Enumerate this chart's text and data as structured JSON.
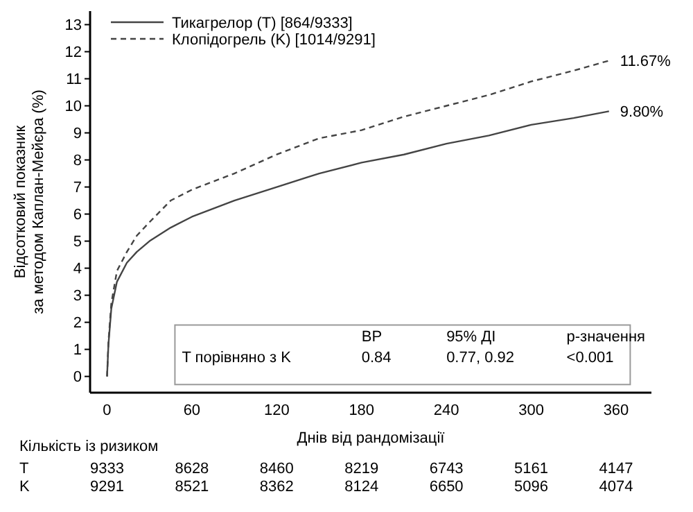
{
  "chart_data": {
    "type": "line",
    "xlabel": "Днів від рандомізації",
    "ylabel": "Відсотковий показник\nза методом Каплан-Мейєра (%)",
    "xlim": [
      -12,
      385
    ],
    "ylim": [
      -0.6,
      13.5
    ],
    "xticks": [
      0,
      60,
      120,
      180,
      240,
      300,
      360
    ],
    "yticks": [
      0,
      1,
      2,
      3,
      4,
      5,
      6,
      7,
      8,
      9,
      10,
      11,
      12,
      13
    ],
    "legend": "top left",
    "grid": false,
    "series": [
      {
        "name": "Тикагрелор (T) [864/9333]",
        "color": "#444444",
        "line_style": "solid",
        "x": [
          0,
          1,
          3,
          7,
          14,
          21,
          30,
          45,
          60,
          90,
          120,
          150,
          180,
          210,
          240,
          270,
          300,
          330,
          355
        ],
        "values": [
          0,
          1.2,
          2.5,
          3.5,
          4.2,
          4.6,
          5.0,
          5.5,
          5.9,
          6.5,
          7.0,
          7.5,
          7.9,
          8.2,
          8.6,
          8.9,
          9.3,
          9.55,
          9.8
        ]
      },
      {
        "name": "Клопідогрель (K) [1014/9291]",
        "color": "#444444",
        "line_style": "dashed",
        "x": [
          0,
          1,
          3,
          7,
          14,
          21,
          30,
          45,
          60,
          90,
          120,
          150,
          180,
          210,
          240,
          270,
          300,
          330,
          355
        ],
        "values": [
          0,
          1.3,
          2.7,
          3.9,
          4.6,
          5.2,
          5.7,
          6.5,
          6.9,
          7.5,
          8.2,
          8.8,
          9.1,
          9.6,
          10.0,
          10.4,
          10.9,
          11.3,
          11.67
        ]
      }
    ],
    "annotations": [
      {
        "text": "11.67%",
        "x": 355,
        "y": 11.67
      },
      {
        "text": "9.80%",
        "x": 355,
        "y": 9.8
      },
      "BP",
      "95% ДІ",
      "р-значення",
      "T порівняно з K",
      "0.84",
      "0.77, 0.92",
      "<0.001",
      "Кількість із ризиком",
      "T",
      "9333",
      "8628",
      "8460",
      "8219",
      "6743",
      "5161",
      "4147",
      "K",
      "9291",
      "8521",
      "8362",
      "8124",
      "6650",
      "5096",
      "4074"
    ]
  }
}
